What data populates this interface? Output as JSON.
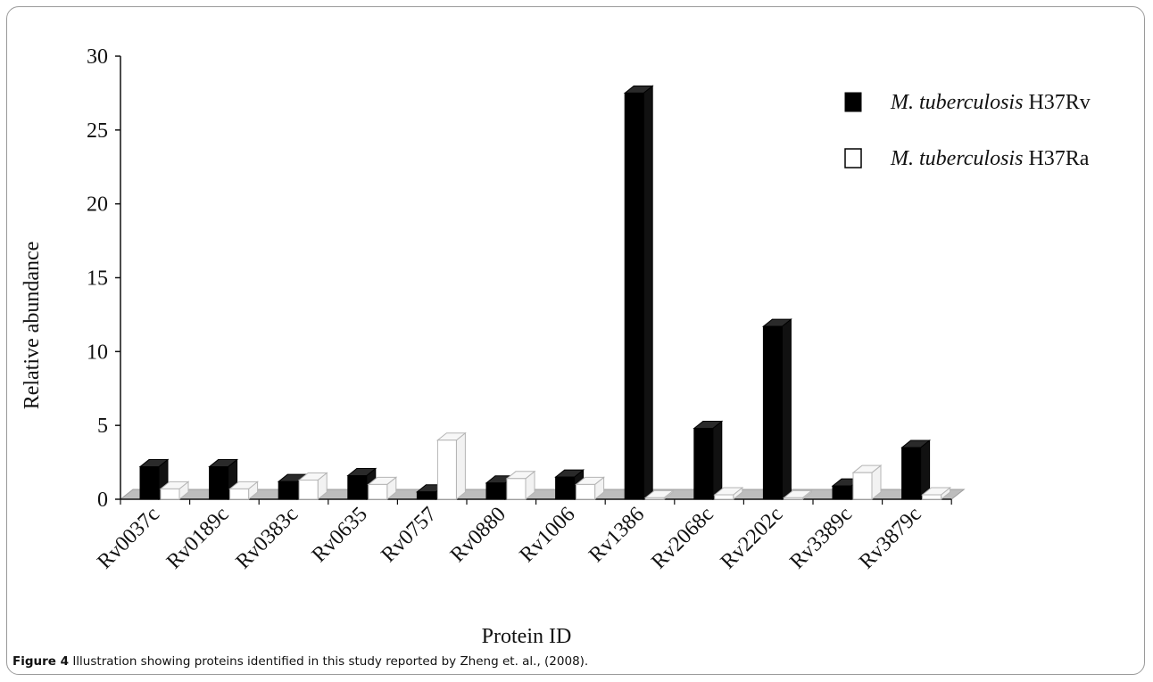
{
  "caption": {
    "label": "Figure 4",
    "text": "Illustration showing proteins identified in this study reported by Zheng et. al., (2008)."
  },
  "chart_data": {
    "type": "bar",
    "title": "",
    "xlabel": "Protein ID",
    "ylabel": "Relative abundance",
    "ylim": [
      0,
      30
    ],
    "yticks": [
      "0",
      "5",
      "10",
      "15",
      "20",
      "25",
      "30"
    ],
    "categories": [
      "Rv0037c",
      "Rv0189c",
      "Rv0383c",
      "Rv0635",
      "Rv0757",
      "Rv0880",
      "Rv1006",
      "Rv1386",
      "Rv2068c",
      "Rv2202c",
      "Rv3389c",
      "Rv3879c"
    ],
    "series": [
      {
        "name_italic": "M. tuberculosis",
        "name_rest": " H37Rv",
        "color": "#000000",
        "values": [
          2.2,
          2.2,
          1.2,
          1.6,
          0.5,
          1.1,
          1.5,
          27.5,
          4.8,
          11.7,
          0.9,
          3.5
        ]
      },
      {
        "name_italic": "M. tuberculosis",
        "name_rest": " H37Ra",
        "color": "#ffffff",
        "values": [
          0.7,
          0.7,
          1.3,
          1.0,
          4.0,
          1.4,
          1.0,
          0.1,
          0.3,
          0.1,
          1.8,
          0.3
        ]
      }
    ],
    "legend": "top-right",
    "grid": false,
    "style": "3d-column"
  }
}
